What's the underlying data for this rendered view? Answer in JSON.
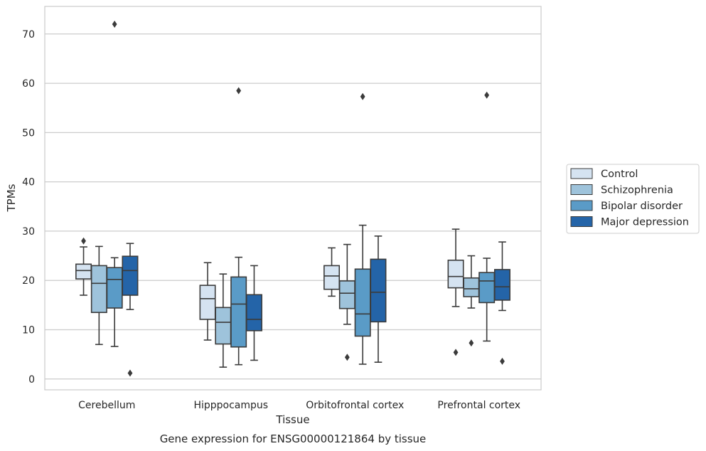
{
  "chart_data": {
    "type": "box",
    "title": "",
    "caption": "Gene expression for ENSG00000121864 by tissue",
    "xlabel": "Tissue",
    "ylabel": "TPMs",
    "ylim": [
      -2.2,
      75.6
    ],
    "yticks": [
      0,
      10,
      20,
      30,
      40,
      50,
      60,
      70
    ],
    "grid": "horizontal",
    "legend_position": "right-center",
    "categories": [
      "Cerebellum",
      "Hipppocampus",
      "Orbitofrontal cortex",
      "Prefrontal cortex"
    ],
    "series": [
      {
        "name": "Control",
        "color": "#d5e3f1",
        "boxes": [
          {
            "whislo": 17.0,
            "q1": 20.3,
            "med": 22.0,
            "q3": 23.3,
            "whishi": 26.8,
            "fliers": [
              28.0
            ]
          },
          {
            "whislo": 7.9,
            "q1": 12.1,
            "med": 16.3,
            "q3": 19.0,
            "whishi": 23.6,
            "fliers": []
          },
          {
            "whislo": 16.8,
            "q1": 18.2,
            "med": 20.9,
            "q3": 23.0,
            "whishi": 26.6,
            "fliers": []
          },
          {
            "whislo": 14.7,
            "q1": 18.5,
            "med": 20.8,
            "q3": 24.1,
            "whishi": 30.4,
            "fliers": [
              5.4
            ]
          }
        ]
      },
      {
        "name": "Schizophrenia",
        "color": "#9ec3db",
        "boxes": [
          {
            "whislo": 7.0,
            "q1": 13.5,
            "med": 19.4,
            "q3": 23.0,
            "whishi": 26.9,
            "fliers": []
          },
          {
            "whislo": 2.4,
            "q1": 7.1,
            "med": 11.5,
            "q3": 14.5,
            "whishi": 21.3,
            "fliers": []
          },
          {
            "whislo": 11.1,
            "q1": 14.3,
            "med": 17.4,
            "q3": 19.9,
            "whishi": 27.3,
            "fliers": [
              4.4
            ]
          },
          {
            "whislo": 14.4,
            "q1": 16.7,
            "med": 18.3,
            "q3": 20.5,
            "whishi": 25.0,
            "fliers": [
              7.3
            ]
          }
        ]
      },
      {
        "name": "Bipolar disorder",
        "color": "#5a9bc7",
        "boxes": [
          {
            "whislo": 6.6,
            "q1": 14.4,
            "med": 20.2,
            "q3": 22.6,
            "whishi": 24.6,
            "fliers": [
              72.0
            ]
          },
          {
            "whislo": 2.9,
            "q1": 6.5,
            "med": 15.2,
            "q3": 20.7,
            "whishi": 24.7,
            "fliers": [
              58.5
            ]
          },
          {
            "whislo": 3.0,
            "q1": 8.7,
            "med": 13.2,
            "q3": 22.3,
            "whishi": 31.2,
            "fliers": [
              57.3
            ]
          },
          {
            "whislo": 7.7,
            "q1": 15.5,
            "med": 19.9,
            "q3": 21.6,
            "whishi": 24.5,
            "fliers": [
              57.6
            ]
          }
        ]
      },
      {
        "name": "Major depression",
        "color": "#2464a8",
        "boxes": [
          {
            "whislo": 14.1,
            "q1": 17.0,
            "med": 22.0,
            "q3": 24.9,
            "whishi": 27.5,
            "fliers": [
              1.2
            ]
          },
          {
            "whislo": 3.8,
            "q1": 9.8,
            "med": 12.1,
            "q3": 17.1,
            "whishi": 23.0,
            "fliers": []
          },
          {
            "whislo": 3.4,
            "q1": 11.6,
            "med": 17.6,
            "q3": 24.3,
            "whishi": 29.0,
            "fliers": []
          },
          {
            "whislo": 13.9,
            "q1": 16.0,
            "med": 18.7,
            "q3": 22.2,
            "whishi": 27.8,
            "fliers": [
              3.6
            ]
          }
        ]
      }
    ]
  }
}
